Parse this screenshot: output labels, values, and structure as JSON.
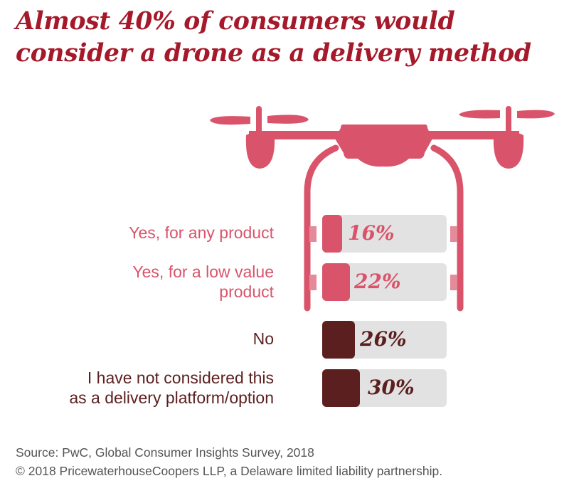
{
  "title": {
    "line1": "Almost 40% of consumers would",
    "line2": "consider a drone as a delivery method"
  },
  "colors": {
    "title": "#a5192a",
    "yes": "#d9546b",
    "no": "#5c1f1f",
    "track": "#e2e2e2"
  },
  "chart_data": {
    "type": "bar",
    "title": "Almost 40% of consumers would consider a drone as a delivery method",
    "categories": [
      "Yes, for any product",
      "Yes, for a low value product",
      "No",
      "I have not considered this as a delivery platform/option"
    ],
    "label_lines": [
      [
        "Yes, for any product"
      ],
      [
        "Yes, for a low value",
        "product"
      ],
      [
        "No"
      ],
      [
        "I have not considered this",
        "as a delivery platform/option"
      ]
    ],
    "values": [
      16,
      22,
      26,
      30
    ],
    "value_labels": [
      "16%",
      "22%",
      "26%",
      "30%"
    ],
    "ylim": [
      0,
      100
    ],
    "unit": "%"
  },
  "footer": {
    "source": "Source: PwC, Global Consumer Insights Survey, 2018",
    "copyright": "© 2018 PricewaterhouseCoopers LLP, a Delaware limited liability partnership."
  }
}
